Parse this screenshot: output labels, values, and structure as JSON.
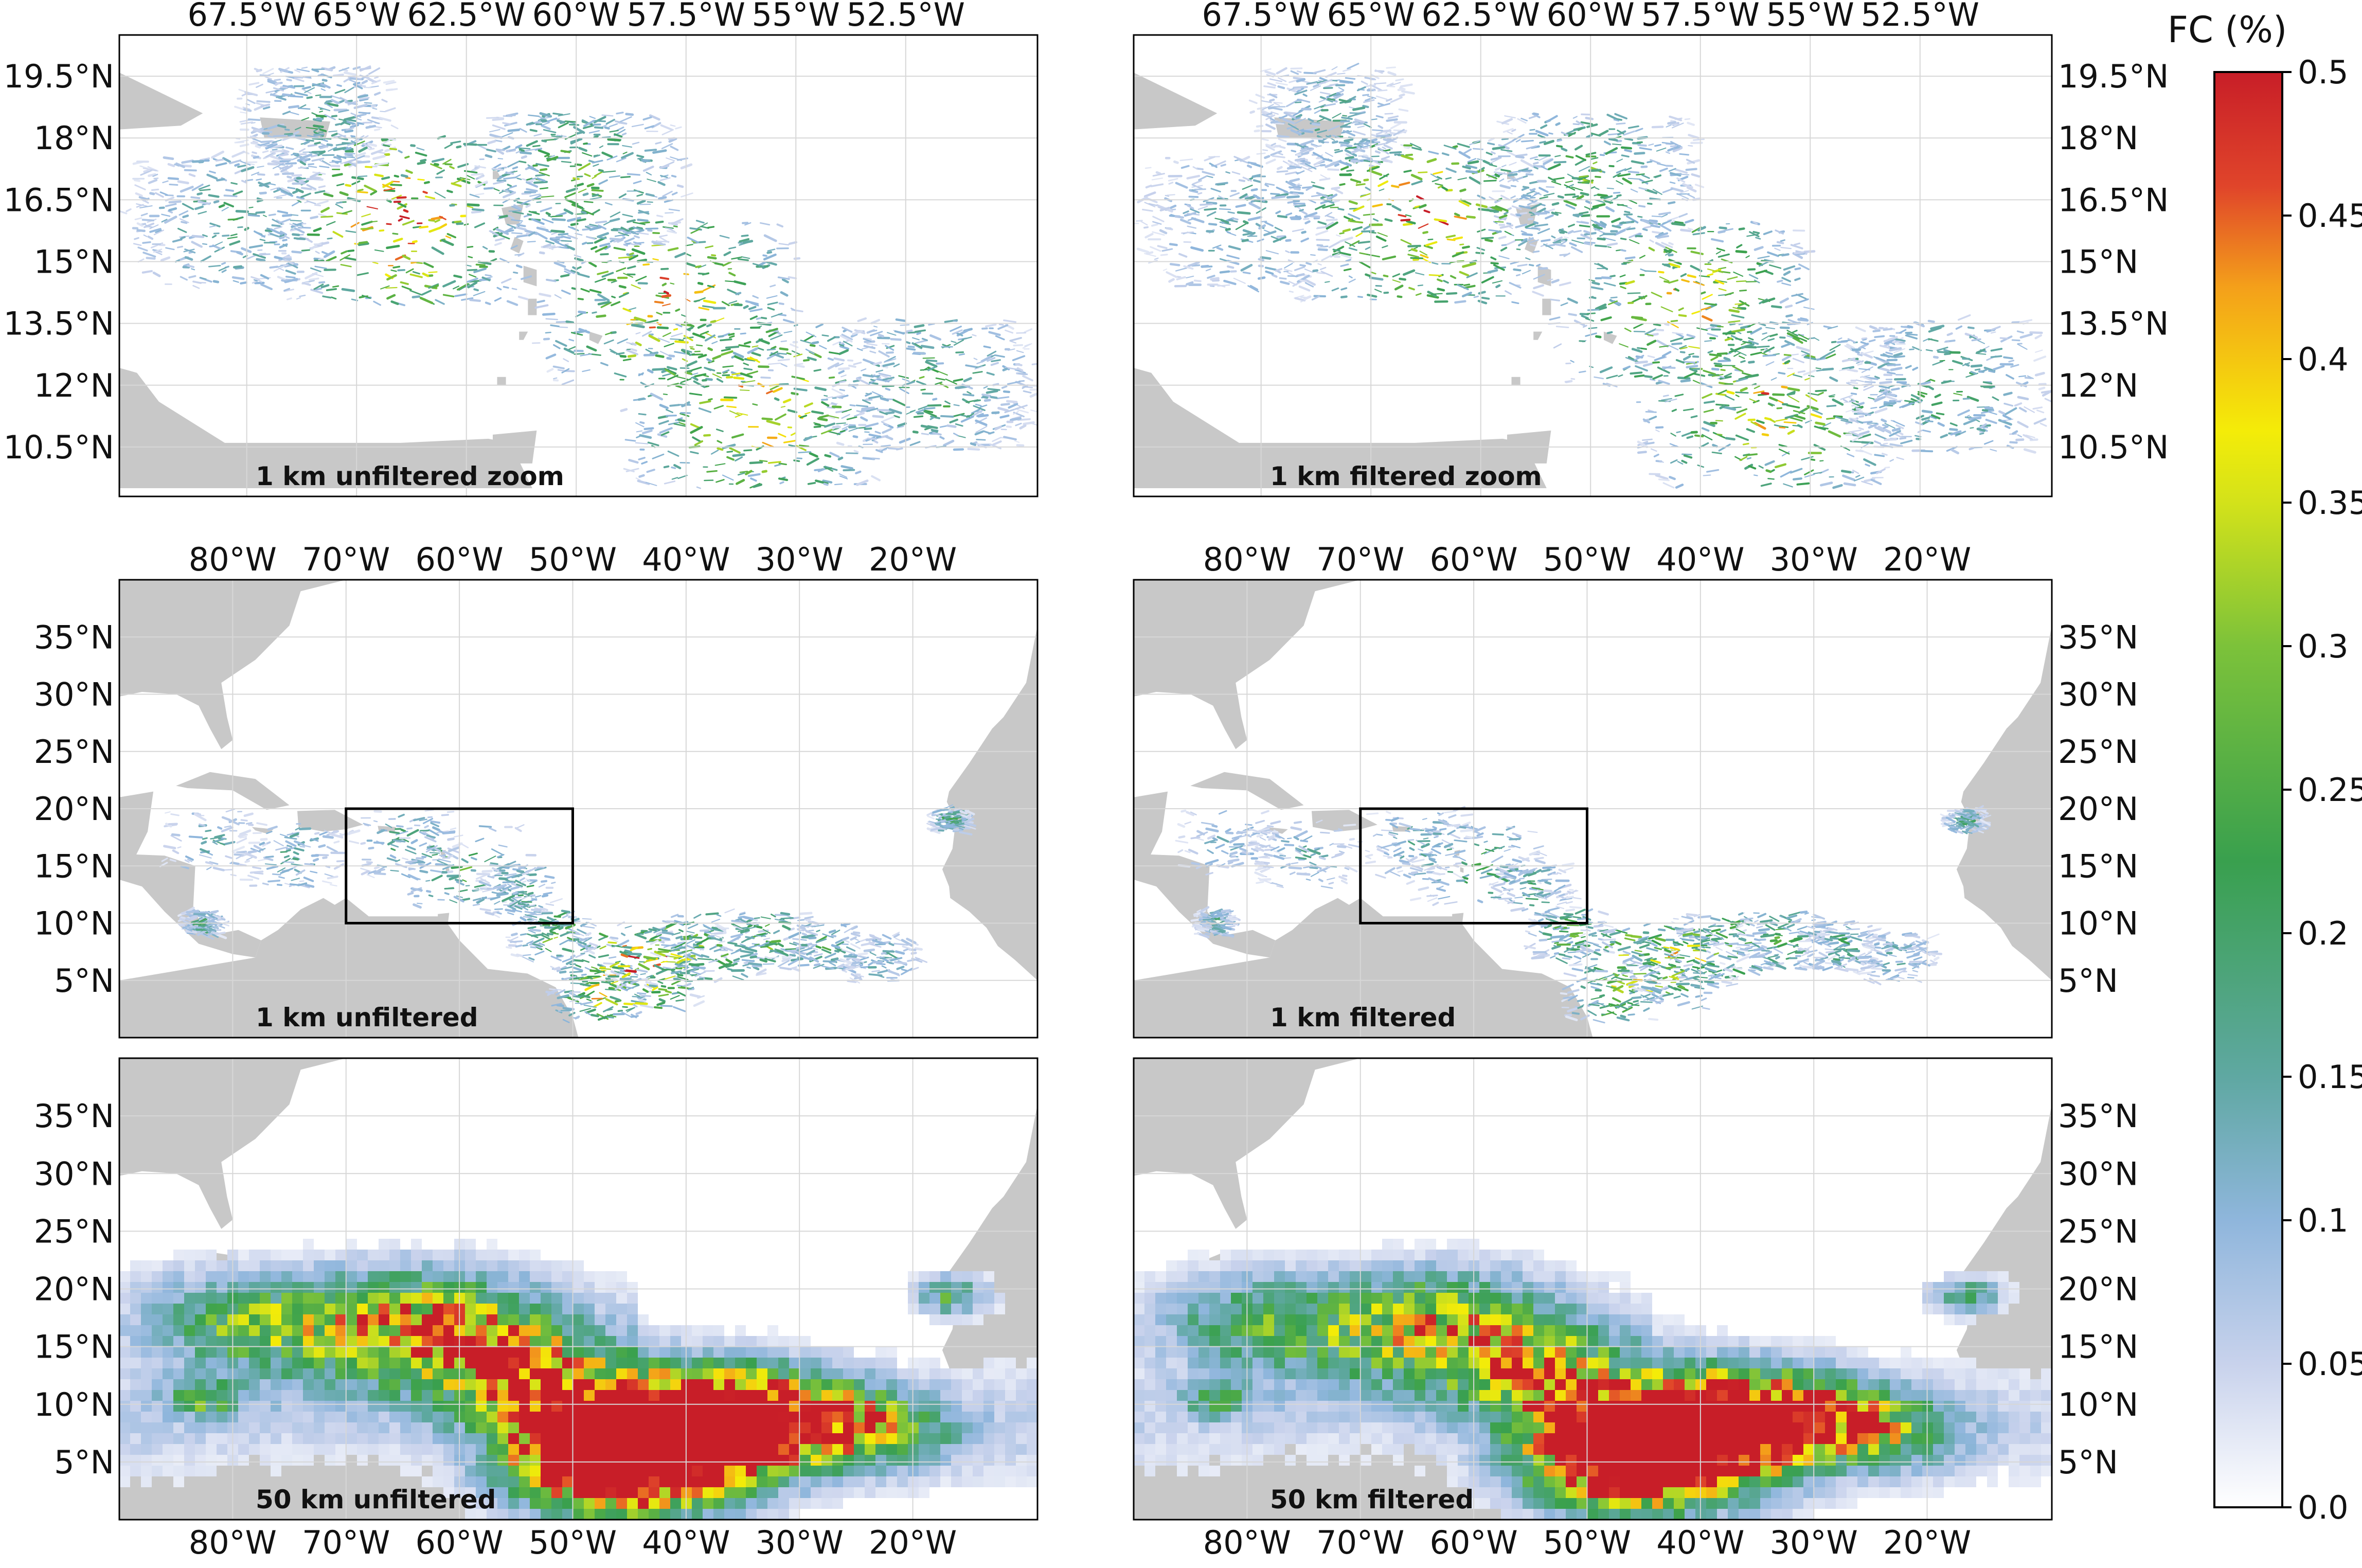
{
  "colorbar": {
    "title": "FC (%)",
    "ticks": [
      "0.0",
      "0.05",
      "0.1",
      "0.15",
      "0.2",
      "0.25",
      "0.3",
      "0.35",
      "0.4",
      "0.45",
      "0.5"
    ],
    "min": 0.0,
    "max": 0.5,
    "colors": [
      "#ffffff",
      "#c8d2ec",
      "#8fb6dc",
      "#5fa8a2",
      "#39a04e",
      "#7cc23a",
      "#d3e21a",
      "#f4ec08",
      "#f4a01a",
      "#e0452a",
      "#c81e28"
    ]
  },
  "colors": {
    "land": "#c8c8c8",
    "ocean": "#ffffff",
    "grid": "#d7d7d7",
    "frame": "#000000",
    "region_box": "#000000"
  },
  "panels": [
    {
      "id": "zoom-unfiltered",
      "label": "1 km unfiltered zoom",
      "lon_ticks": [
        "67.5°W",
        "65°W",
        "62.5°W",
        "60°W",
        "57.5°W",
        "55°W",
        "52.5°W"
      ],
      "lat_ticks": [
        "19.5°N",
        "18°N",
        "16.5°N",
        "15°N",
        "13.5°N",
        "12°N",
        "10.5°N"
      ],
      "lon_labels_side": "top",
      "lat_labels_side": "left"
    },
    {
      "id": "zoom-filtered",
      "label": "1 km filtered zoom",
      "lon_ticks": [
        "67.5°W",
        "65°W",
        "62.5°W",
        "60°W",
        "57.5°W",
        "55°W",
        "52.5°W"
      ],
      "lat_ticks": [
        "19.5°N",
        "18°N",
        "16.5°N",
        "15°N",
        "13.5°N",
        "12°N",
        "10.5°N"
      ],
      "lon_labels_side": "top",
      "lat_labels_side": "right"
    },
    {
      "id": "1km-unfiltered",
      "label": "1 km unfiltered",
      "lon_ticks": [
        "80°W",
        "70°W",
        "60°W",
        "50°W",
        "40°W",
        "30°W",
        "20°W"
      ],
      "lat_ticks": [
        "35°N",
        "30°N",
        "25°N",
        "20°N",
        "15°N",
        "10°N",
        "5°N"
      ],
      "lon_labels_side": "top",
      "lat_labels_side": "left",
      "region_box": {
        "lon": [
          -70,
          -50
        ],
        "lat": [
          10,
          20
        ]
      }
    },
    {
      "id": "1km-filtered",
      "label": "1 km filtered",
      "lon_ticks": [
        "80°W",
        "70°W",
        "60°W",
        "50°W",
        "40°W",
        "30°W",
        "20°W"
      ],
      "lat_ticks": [
        "35°N",
        "30°N",
        "25°N",
        "20°N",
        "15°N",
        "10°N",
        "5°N"
      ],
      "lon_labels_side": "top",
      "lat_labels_side": "right",
      "region_box": {
        "lon": [
          -70,
          -50
        ],
        "lat": [
          10,
          20
        ]
      }
    },
    {
      "id": "50km-unfiltered",
      "label": "50 km unfiltered",
      "lon_ticks": [
        "80°W",
        "70°W",
        "60°W",
        "50°W",
        "40°W",
        "30°W",
        "20°W"
      ],
      "lat_ticks": [
        "35°N",
        "30°N",
        "25°N",
        "20°N",
        "15°N",
        "10°N",
        "5°N"
      ],
      "lon_labels_side": "bottom",
      "lat_labels_side": "left"
    },
    {
      "id": "50km-filtered",
      "label": "50 km filtered",
      "lon_ticks": [
        "80°W",
        "70°W",
        "60°W",
        "50°W",
        "40°W",
        "30°W",
        "20°W"
      ],
      "lat_ticks": [
        "35°N",
        "30°N",
        "25°N",
        "20°N",
        "15°N",
        "10°N",
        "5°N"
      ],
      "lon_labels_side": "bottom",
      "lat_labels_side": "right"
    }
  ]
}
